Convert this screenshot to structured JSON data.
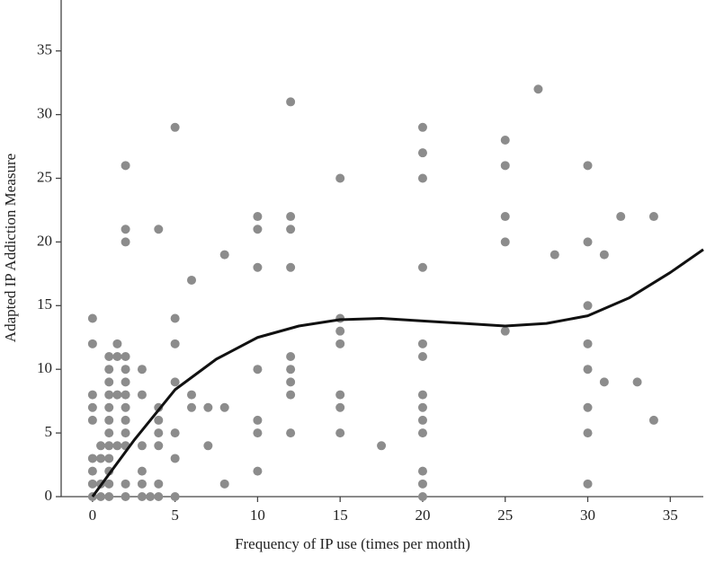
{
  "chart_data": {
    "type": "scatter",
    "x_label": "Frequency of IP use (times per month)",
    "y_label": "Adapted IP Addiction Measure",
    "xlim": [
      -1.9,
      37
    ],
    "ylim": [
      0,
      39
    ],
    "xticks": [
      0,
      5,
      10,
      15,
      20,
      25,
      30,
      35
    ],
    "yticks": [
      0,
      5,
      10,
      15,
      20,
      25,
      30,
      35
    ],
    "grid": false,
    "points": {
      "color": "#8c8c8c",
      "x": [
        0,
        0,
        0,
        0,
        0,
        0,
        0,
        0,
        0,
        0.5,
        0.5,
        0.5,
        0.5,
        1,
        1,
        1,
        1,
        1,
        1,
        1,
        1,
        1,
        1,
        1,
        1,
        1.5,
        1.5,
        1.5,
        1.5,
        2,
        2,
        2,
        2,
        2,
        2,
        2,
        2,
        2,
        2,
        2,
        2,
        2,
        3,
        3,
        3,
        3,
        3,
        3,
        3.5,
        4,
        4,
        4,
        4,
        4,
        4,
        4,
        5,
        5,
        5,
        5,
        5,
        5,
        5,
        6,
        6,
        6,
        7,
        7,
        8,
        8,
        8,
        10,
        10,
        10,
        10,
        10,
        10,
        10,
        12,
        12,
        12,
        12,
        12,
        12,
        12,
        12,
        12,
        15,
        15,
        15,
        15,
        15,
        15,
        15,
        17.5,
        20,
        20,
        20,
        20,
        20,
        20,
        20,
        20,
        20,
        20,
        20,
        20,
        20,
        25,
        25,
        25,
        25,
        25,
        27,
        28,
        30,
        30,
        30,
        30,
        30,
        30,
        30,
        30,
        31,
        31,
        32,
        33,
        34,
        34
      ],
      "values": [
        14,
        12,
        8,
        7,
        6,
        3,
        2,
        1,
        0,
        4,
        3,
        1,
        0,
        11,
        10,
        9,
        8,
        7,
        6,
        5,
        4,
        3,
        2,
        1,
        0,
        12,
        11,
        8,
        4,
        26,
        21,
        20,
        11,
        10,
        9,
        8,
        7,
        6,
        5,
        4,
        1,
        0,
        10,
        8,
        4,
        2,
        1,
        0,
        0,
        21,
        7,
        6,
        5,
        4,
        1,
        0,
        29,
        14,
        12,
        9,
        5,
        3,
        0,
        17,
        8,
        7,
        7,
        4,
        19,
        7,
        1,
        22,
        21,
        18,
        10,
        6,
        5,
        2,
        31,
        22,
        21,
        18,
        11,
        10,
        9,
        8,
        5,
        25,
        14,
        13,
        12,
        8,
        7,
        5,
        4,
        29,
        27,
        25,
        18,
        12,
        11,
        8,
        7,
        6,
        5,
        2,
        1,
        0,
        28,
        26,
        22,
        20,
        13,
        32,
        19,
        26,
        20,
        15,
        12,
        10,
        7,
        5,
        1,
        19,
        9,
        22,
        9,
        22,
        6
      ]
    },
    "fit": {
      "color": "#111111",
      "x": [
        0,
        2.5,
        5,
        7.5,
        10,
        12.5,
        15,
        17.5,
        20,
        22.5,
        25,
        27.5,
        30,
        32.5,
        35,
        37
      ],
      "values": [
        0,
        4.4,
        8.4,
        10.8,
        12.5,
        13.4,
        13.9,
        14,
        13.8,
        13.6,
        13.4,
        13.6,
        14.2,
        15.6,
        17.6,
        19.4
      ]
    }
  }
}
